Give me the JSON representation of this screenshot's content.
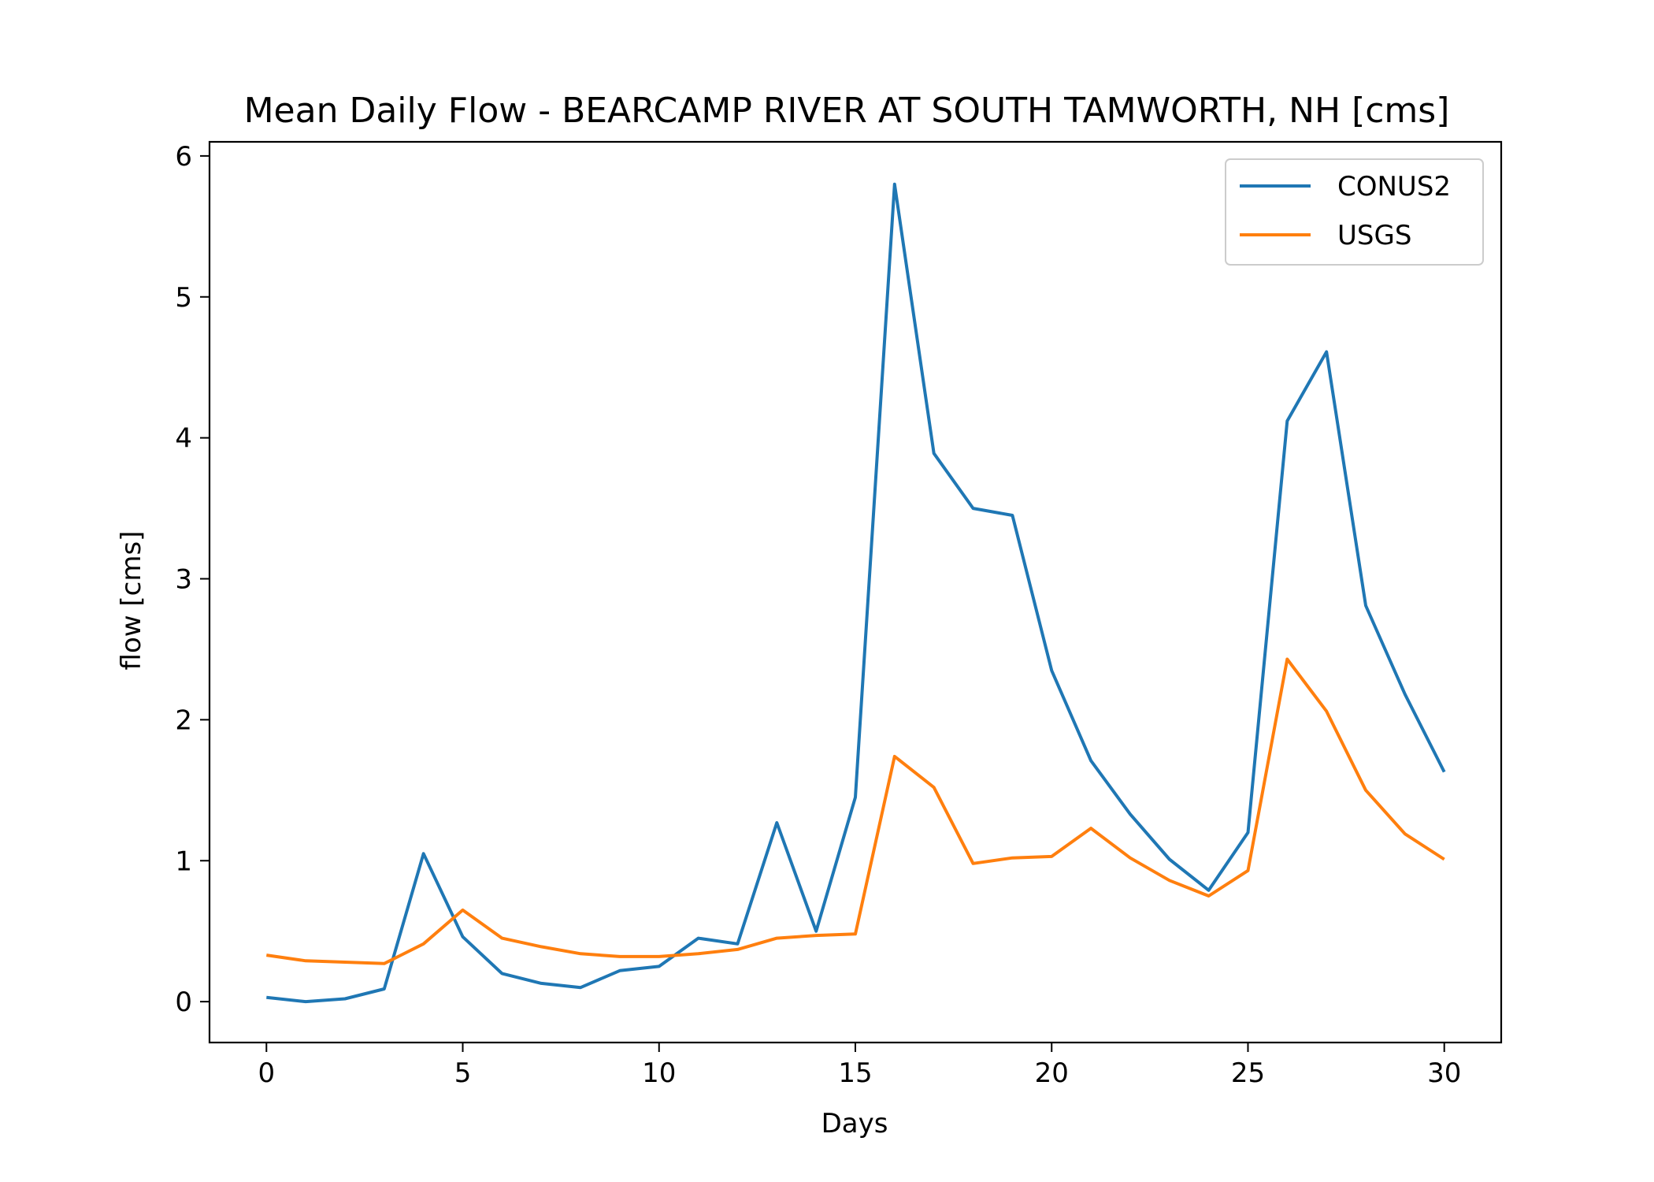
{
  "chart_data": {
    "type": "line",
    "title": "Mean Daily Flow - BEARCAMP RIVER AT SOUTH TAMWORTH, NH [cms]",
    "xlabel": "Days",
    "ylabel": "flow [cms]",
    "xlim": [
      -1.45,
      31.45
    ],
    "ylim": [
      -0.29,
      6.1
    ],
    "xticks": [
      0,
      5,
      10,
      15,
      20,
      25,
      30
    ],
    "yticks": [
      0,
      1,
      2,
      3,
      4,
      5,
      6
    ],
    "grid": false,
    "legend_position": "top-right",
    "x": [
      0,
      1,
      2,
      3,
      4,
      5,
      6,
      7,
      8,
      9,
      10,
      11,
      12,
      13,
      14,
      15,
      16,
      17,
      18,
      19,
      20,
      21,
      22,
      23,
      24,
      25,
      26,
      27,
      28,
      29,
      30
    ],
    "series": [
      {
        "name": "CONUS2",
        "color": "#1f77b4",
        "values": [
          0.03,
          0.0,
          0.02,
          0.09,
          1.05,
          0.46,
          0.2,
          0.13,
          0.1,
          0.22,
          0.25,
          0.45,
          0.41,
          1.27,
          0.5,
          1.45,
          5.8,
          3.89,
          3.5,
          3.45,
          2.35,
          1.71,
          1.33,
          1.01,
          0.79,
          1.2,
          4.12,
          4.61,
          2.81,
          2.18,
          1.63
        ]
      },
      {
        "name": "USGS",
        "color": "#ff7f0e",
        "values": [
          0.33,
          0.29,
          0.28,
          0.27,
          0.41,
          0.65,
          0.45,
          0.39,
          0.34,
          0.32,
          0.32,
          0.34,
          0.37,
          0.45,
          0.47,
          0.48,
          1.74,
          1.52,
          0.98,
          1.02,
          1.03,
          1.23,
          1.02,
          0.86,
          0.75,
          0.93,
          2.43,
          2.06,
          1.5,
          1.19,
          1.01
        ]
      }
    ]
  }
}
